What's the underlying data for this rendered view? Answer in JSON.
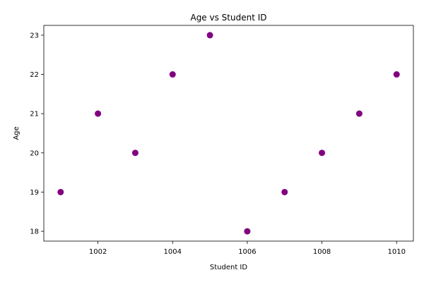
{
  "chart_data": {
    "type": "scatter",
    "title": "Age vs Student ID",
    "xlabel": "Student ID",
    "ylabel": "Age",
    "x": [
      1001,
      1002,
      1003,
      1004,
      1005,
      1006,
      1007,
      1008,
      1009,
      1010
    ],
    "y": [
      19,
      21,
      20,
      22,
      23,
      18,
      19,
      20,
      21,
      22
    ],
    "xlim": [
      1000.55,
      1010.45
    ],
    "ylim": [
      17.75,
      23.25
    ],
    "xticks": [
      "1002",
      "1004",
      "1006",
      "1008",
      "1010"
    ],
    "yticks": [
      "18",
      "19",
      "20",
      "21",
      "22",
      "23"
    ],
    "grid": false,
    "marker_color": "#800080"
  }
}
